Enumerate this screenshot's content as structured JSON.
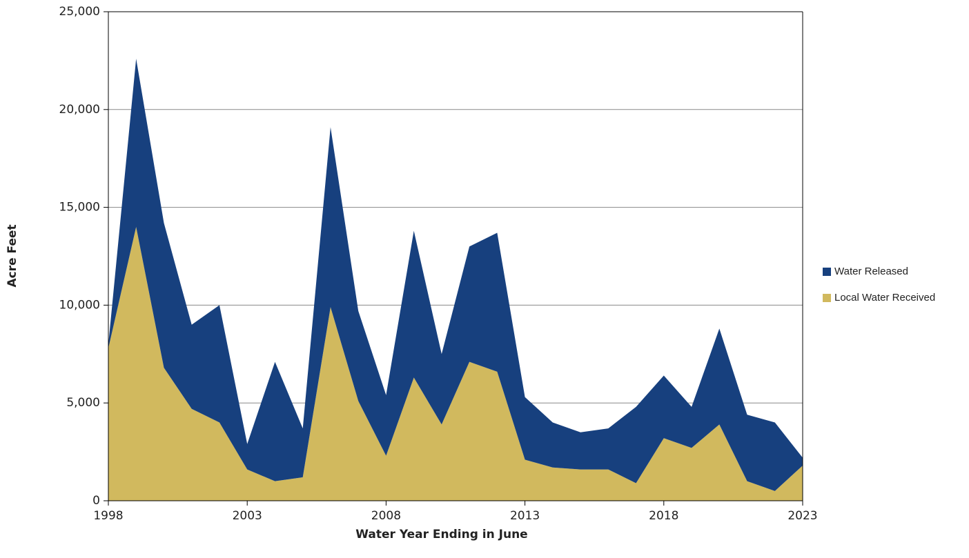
{
  "chart_data": {
    "type": "stacked_area",
    "x_label": "Water Year Ending in June",
    "y_label": "Acre Feet",
    "x": [
      1998,
      1999,
      2000,
      2001,
      2002,
      2003,
      2004,
      2005,
      2006,
      2007,
      2008,
      2009,
      2010,
      2011,
      2012,
      2013,
      2014,
      2015,
      2016,
      2017,
      2018,
      2019,
      2020,
      2021,
      2022,
      2023
    ],
    "series": [
      {
        "name": "Local Water Received",
        "color": "#d1b95e",
        "values": [
          7800,
          14000,
          6800,
          4700,
          4000,
          1600,
          1000,
          1200,
          9900,
          5100,
          2300,
          6300,
          3900,
          7100,
          6600,
          2100,
          1700,
          1600,
          1600,
          900,
          3200,
          2700,
          3900,
          1000,
          500,
          1800
        ]
      },
      {
        "name": "Water Released",
        "color": "#17407e",
        "values": [
          200,
          8600,
          7400,
          4300,
          6000,
          1300,
          6100,
          2500,
          9200,
          4600,
          3100,
          7500,
          3600,
          5900,
          7100,
          3200,
          2300,
          1900,
          2100,
          3900,
          3200,
          2100,
          4900,
          3400,
          3500,
          400
        ]
      }
    ],
    "xlim": [
      1998,
      2023
    ],
    "xticks": [
      1998,
      2003,
      2008,
      2013,
      2018,
      2023
    ],
    "ylim": [
      0,
      25000
    ],
    "yticks": [
      0,
      {
        "value": 5000,
        "label": "5,000"
      },
      {
        "value": 10000,
        "label": "10,000"
      },
      {
        "value": 15000,
        "label": "15,000"
      },
      {
        "value": 20000,
        "label": "20,000"
      },
      {
        "value": 25000,
        "label": "25,000"
      }
    ],
    "grid": true,
    "legend": "right"
  }
}
